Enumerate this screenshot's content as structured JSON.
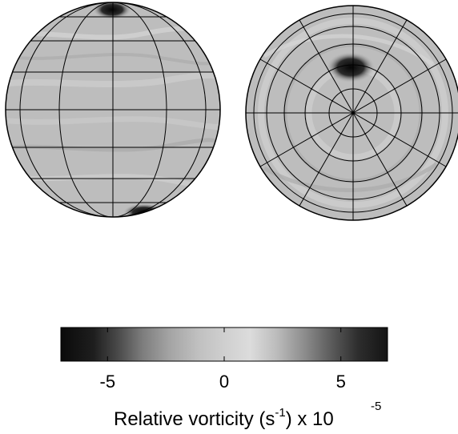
{
  "globes": [
    {
      "view": "equatorial",
      "vortices": [
        "north-polar-vortex",
        "south-polar-vortex"
      ]
    },
    {
      "view": "north-polar",
      "vortices": [
        "polar-vortex"
      ]
    }
  ],
  "colorbar": {
    "range": [
      -7,
      7
    ],
    "ticks": [
      {
        "value": -5,
        "label": "-5"
      },
      {
        "value": 0,
        "label": "0"
      },
      {
        "value": 5,
        "label": "5"
      }
    ],
    "label_prefix": "Relative vorticity (s",
    "label_exponent": "-1",
    "label_suffix": ") x 10",
    "scale_exponent": "-5"
  },
  "colors": {
    "negative": "#000000",
    "neutral": "#d8d8d8",
    "positive": "#1a1a1a",
    "grid": "#000000"
  }
}
